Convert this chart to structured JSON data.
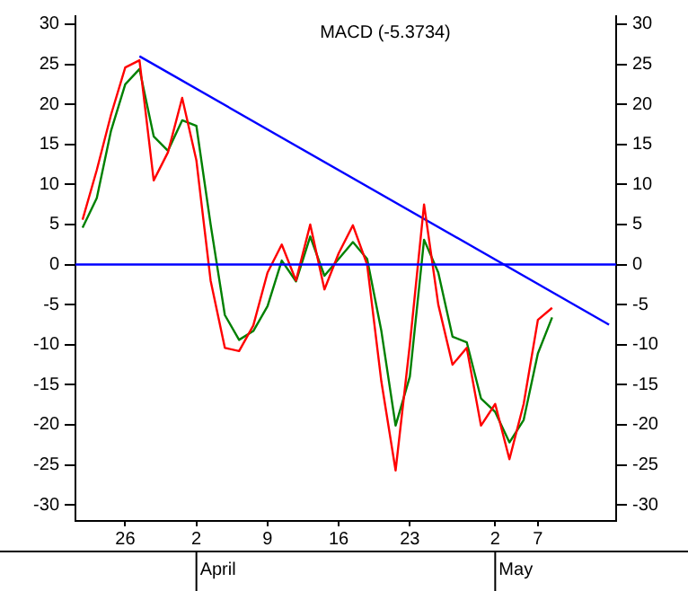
{
  "chart_data": {
    "type": "line",
    "title": "MACD (-5.3734)",
    "categories": [
      null,
      null,
      null,
      "26",
      null,
      null,
      null,
      null,
      "2",
      null,
      null,
      null,
      null,
      "9",
      null,
      null,
      null,
      null,
      "16",
      null,
      null,
      null,
      null,
      "23",
      null,
      null,
      null,
      null,
      null,
      "2",
      null,
      null,
      "7",
      null,
      null,
      null,
      null,
      null
    ],
    "series": [
      {
        "color": "#ff0000",
        "values": [
          5.6,
          11.8,
          18.7,
          24.6,
          25.5,
          10.5,
          14,
          20.8,
          13,
          -2,
          -10.4,
          -10.8,
          -7.6,
          -1,
          2.5,
          -2,
          5,
          -3.1,
          1.4,
          4.9,
          0,
          -14.6,
          -25.7,
          -10,
          7.5,
          -5,
          -12.5,
          -10.4,
          -20.1,
          -17.4,
          -24.3,
          -17.4,
          -6.9,
          -5.4,
          null,
          null,
          null,
          null
        ]
      },
      {
        "color": "#008000",
        "values": [
          4.6,
          8.3,
          16.7,
          22.5,
          24.4,
          16,
          14.2,
          18,
          17.3,
          5,
          -6.3,
          -9.4,
          -8.3,
          -5.2,
          0.5,
          -2.1,
          3.5,
          -1.4,
          0.7,
          2.8,
          0.7,
          -8.3,
          -20.1,
          -14,
          3.1,
          -1,
          -9,
          -9.7,
          -16.7,
          -18.4,
          -22.2,
          -19.4,
          -11.1,
          -6.6,
          null,
          null,
          null,
          null
        ]
      },
      {
        "type": "line",
        "color": "#0000ff",
        "values": [
          null,
          null,
          null,
          null,
          26,
          null,
          null,
          null,
          null,
          null,
          null,
          null,
          null,
          null,
          null,
          null,
          null,
          null,
          null,
          null,
          null,
          null,
          null,
          null,
          null,
          null,
          null,
          null,
          null,
          null,
          null,
          null,
          null,
          null,
          null,
          null,
          null,
          -7.5
        ]
      }
    ],
    "ylim": [
      -32,
      31
    ],
    "yticks": [
      -30,
      -25,
      -20,
      -15,
      -10,
      -5,
      0,
      5,
      10,
      15,
      20,
      25,
      30
    ],
    "y2lim": [
      -32,
      31
    ],
    "y2ticks": [
      -30,
      -25,
      -20,
      -15,
      -10,
      -5,
      0,
      5,
      10,
      15,
      20,
      25,
      30
    ],
    "ref_lines": [
      {
        "axis": "y",
        "value": 0,
        "color": "#0000ff"
      }
    ],
    "annotations": [
      "April",
      "May"
    ],
    "grid": false,
    "legend": false
  }
}
